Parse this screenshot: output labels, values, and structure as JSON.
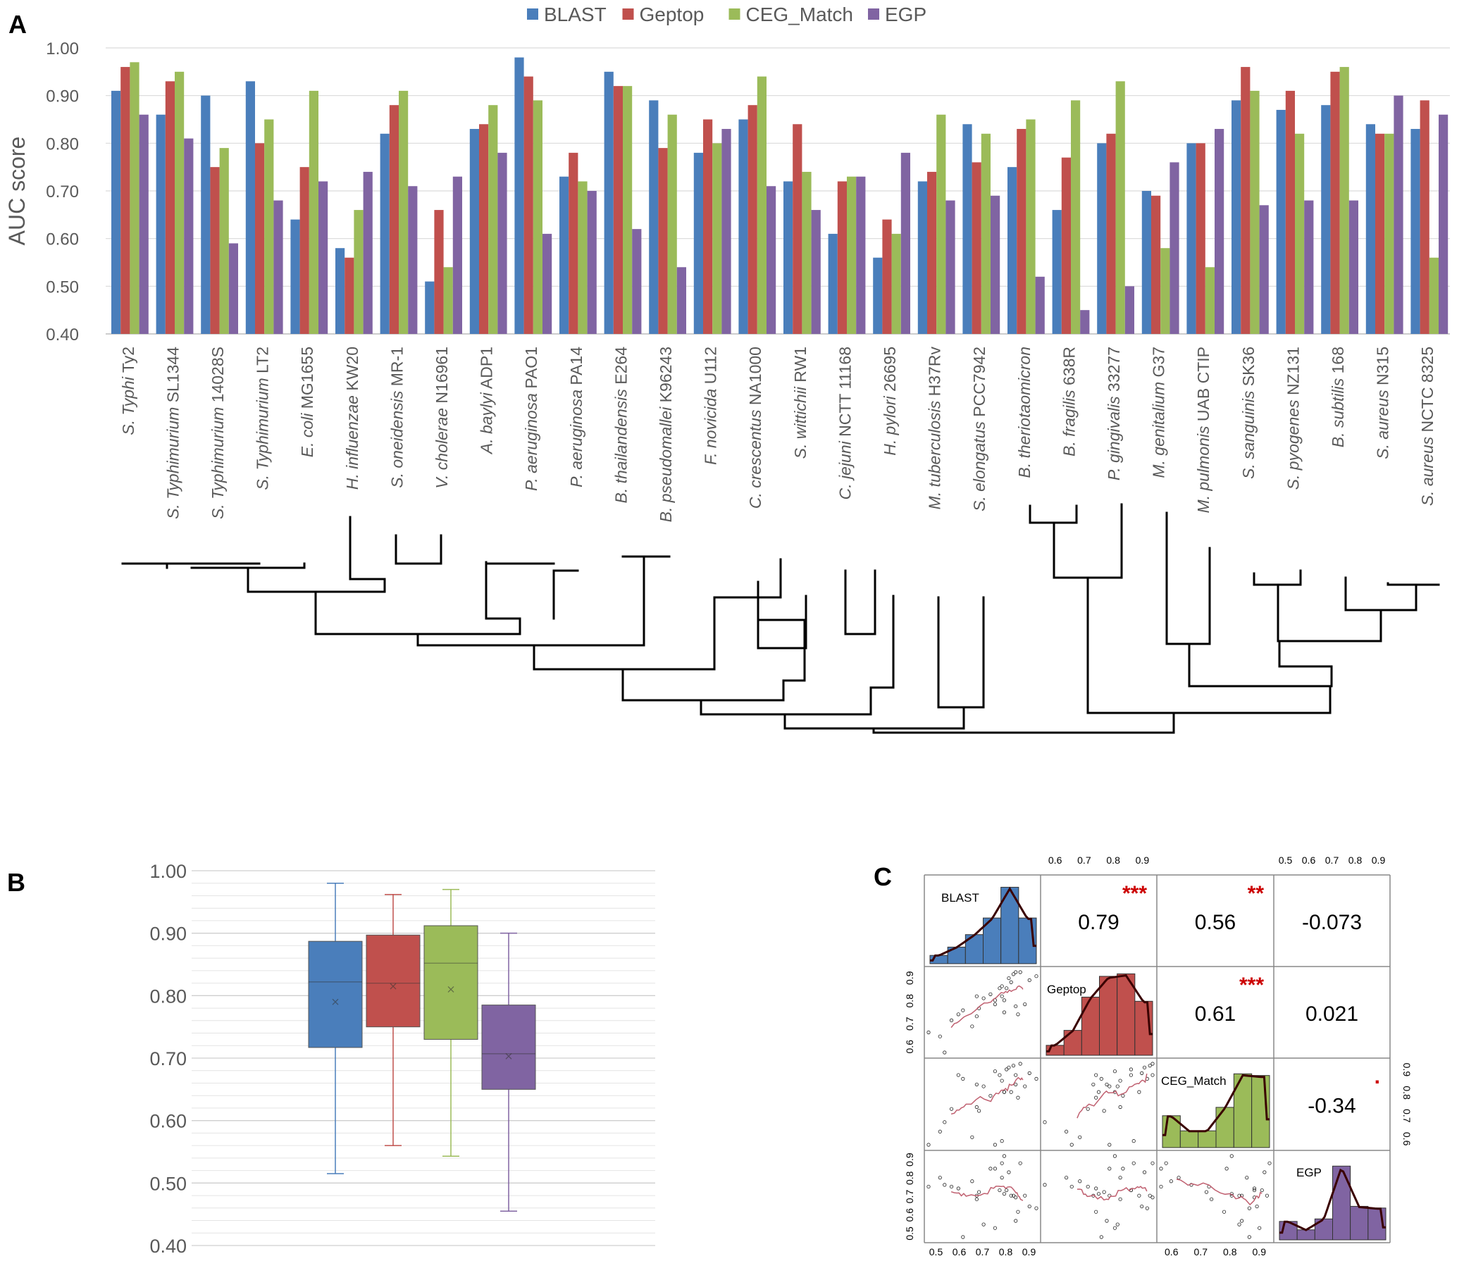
{
  "panels": {
    "a": "A",
    "b": "B",
    "c": "C"
  },
  "colors": {
    "BLAST": "#4a7ebb",
    "Geptop": "#c0504d",
    "CEG_Match": "#9bbb59",
    "EGP": "#8064a2"
  },
  "chart_data": [
    {
      "type": "bar",
      "panel": "A",
      "ylabel": "AUC score",
      "ylim": [
        0.4,
        1.0
      ],
      "yticks": [
        "0.40",
        "0.50",
        "0.60",
        "0.70",
        "0.80",
        "0.90",
        "1.00"
      ],
      "legend": [
        "BLAST",
        "Geptop",
        "CEG_Match",
        "EGP"
      ],
      "categories": [
        {
          "italic": "S. Typhi",
          "rest": " Ty2"
        },
        {
          "italic": "S. Typhimurium",
          "rest": " SL1344"
        },
        {
          "italic": "S. Typhimurium",
          "rest": " 14028S"
        },
        {
          "italic": "S. Typhimurium",
          "rest": " LT2"
        },
        {
          "italic": "E. coli",
          "rest": " MG1655"
        },
        {
          "italic": "H. influenzae",
          "rest": " KW20"
        },
        {
          "italic": "S. oneidensis",
          "rest": " MR-1"
        },
        {
          "italic": "V. cholerae",
          "rest": " N16961"
        },
        {
          "italic": "A. baylyi",
          "rest": " ADP1"
        },
        {
          "italic": "P. aeruginosa",
          "rest": " PAO1"
        },
        {
          "italic": "P. aeruginosa",
          "rest": " PA14"
        },
        {
          "italic": "B. thailandensis",
          "rest": " E264"
        },
        {
          "italic": "B. pseudomallei",
          "rest": " K96243"
        },
        {
          "italic": "F. novicida",
          "rest": " U112"
        },
        {
          "italic": "C. crescentus",
          "rest": " NA1000"
        },
        {
          "italic": "S. wittichii",
          "rest": " RW1"
        },
        {
          "italic": "C. jejuni",
          "rest": " NCTT 11168"
        },
        {
          "italic": "H. pylori",
          "rest": " 26695"
        },
        {
          "italic": "M. tuberculosis",
          "rest": " H37Rv"
        },
        {
          "italic": "S. elongatus",
          "rest": " PCC7942"
        },
        {
          "italic": "B. theriotaomicron",
          "rest": ""
        },
        {
          "italic": "B. fragilis",
          "rest": " 638R"
        },
        {
          "italic": "P. gingivalis",
          "rest": " 33277"
        },
        {
          "italic": "M. genitalium",
          "rest": " G37"
        },
        {
          "italic": "M. pulmonis",
          "rest": " UAB CTIP"
        },
        {
          "italic": "S. sanguinis",
          "rest": " SK36"
        },
        {
          "italic": "S. pyogenes",
          "rest": " NZ131"
        },
        {
          "italic": "B. subtilis",
          "rest": " 168"
        },
        {
          "italic": "S. aureus",
          "rest": " N315"
        },
        {
          "italic": "S. aureus",
          "rest": " NCTC 8325"
        }
      ],
      "series": [
        {
          "name": "BLAST",
          "values": [
            0.91,
            0.86,
            0.9,
            0.93,
            0.64,
            0.58,
            0.82,
            0.51,
            0.83,
            0.98,
            0.73,
            0.95,
            0.89,
            0.78,
            0.85,
            0.72,
            0.61,
            0.56,
            0.72,
            0.84,
            0.75,
            0.66,
            0.8,
            0.7,
            0.8,
            0.89,
            0.87,
            0.88,
            0.84,
            0.83
          ]
        },
        {
          "name": "Geptop",
          "values": [
            0.96,
            0.93,
            0.75,
            0.8,
            0.75,
            0.56,
            0.88,
            0.66,
            0.84,
            0.94,
            0.78,
            0.92,
            0.79,
            0.85,
            0.88,
            0.84,
            0.72,
            0.64,
            0.74,
            0.76,
            0.83,
            0.77,
            0.82,
            0.69,
            0.8,
            0.96,
            0.91,
            0.95,
            0.82,
            0.89
          ]
        },
        {
          "name": "CEG_Match",
          "values": [
            0.97,
            0.95,
            0.79,
            0.85,
            0.91,
            0.66,
            0.91,
            0.54,
            0.88,
            0.89,
            0.72,
            0.92,
            0.86,
            0.8,
            0.94,
            0.74,
            0.73,
            0.61,
            0.86,
            0.82,
            0.85,
            0.89,
            0.93,
            0.58,
            0.54,
            0.91,
            0.82,
            0.96,
            0.82,
            0.56
          ]
        },
        {
          "name": "EGP",
          "values": [
            0.86,
            0.81,
            0.59,
            0.68,
            0.72,
            0.74,
            0.71,
            0.73,
            0.78,
            0.61,
            0.7,
            0.62,
            0.54,
            0.83,
            0.71,
            0.66,
            0.73,
            0.78,
            0.68,
            0.69,
            0.52,
            0.45,
            0.5,
            0.76,
            0.83,
            0.67,
            0.68,
            0.68,
            0.9,
            0.86
          ]
        }
      ]
    },
    {
      "type": "box",
      "panel": "B",
      "ylim": [
        0.4,
        1.0
      ],
      "yticks": [
        "0.40",
        "0.50",
        "0.60",
        "0.70",
        "0.80",
        "0.90",
        "1.00"
      ],
      "series": [
        {
          "name": "BLAST",
          "min": 0.515,
          "q1": 0.717,
          "median": 0.822,
          "q3": 0.887,
          "max": 0.98,
          "mean": 0.79
        },
        {
          "name": "Geptop",
          "min": 0.56,
          "q1": 0.75,
          "median": 0.82,
          "q3": 0.897,
          "max": 0.962,
          "mean": 0.815
        },
        {
          "name": "CEG_Match",
          "min": 0.543,
          "q1": 0.73,
          "median": 0.852,
          "q3": 0.912,
          "max": 0.97,
          "mean": 0.81
        },
        {
          "name": "EGP",
          "min": 0.455,
          "q1": 0.65,
          "median": 0.707,
          "q3": 0.785,
          "max": 0.9,
          "mean": 0.703
        }
      ]
    },
    {
      "type": "scatter-matrix",
      "panel": "C",
      "variables": [
        "BLAST",
        "Geptop",
        "CEG_Match",
        "EGP"
      ],
      "correlations": [
        {
          "row": 0,
          "col": 1,
          "value": "0.79",
          "sig": "***"
        },
        {
          "row": 0,
          "col": 2,
          "value": "0.56",
          "sig": "**"
        },
        {
          "row": 0,
          "col": 3,
          "value": "-0.073",
          "sig": ""
        },
        {
          "row": 1,
          "col": 2,
          "value": "0.61",
          "sig": "***"
        },
        {
          "row": 1,
          "col": 3,
          "value": "0.021",
          "sig": ""
        },
        {
          "row": 2,
          "col": 3,
          "value": "-0.34",
          "sig": "."
        }
      ],
      "top_axis_col1": [
        "0.6",
        "0.7",
        "0.8",
        "0.9"
      ],
      "top_axis_col3": [
        "0.5",
        "0.6",
        "0.7",
        "0.8",
        "0.9"
      ],
      "left_axis_row1": [
        "0.6",
        "0.7",
        "0.8",
        "0.9"
      ],
      "left_axis_row3": [
        "0.5",
        "0.6",
        "0.7",
        "0.8",
        "0.9"
      ],
      "right_axis_row2": [
        "0.6",
        "0.7",
        "0.8",
        "0.9"
      ],
      "bottom_axis_col0": [
        "0.5",
        "0.6",
        "0.7",
        "0.8",
        "0.9"
      ],
      "bottom_axis_col2": [
        "0.6",
        "0.7",
        "0.8",
        "0.9"
      ],
      "histograms": {
        "BLAST": [
          0.1,
          0.2,
          0.35,
          0.55,
          0.92,
          0.55
        ],
        "Geptop": [
          0.12,
          0.3,
          0.7,
          0.95,
          0.98,
          0.65
        ],
        "CEG_Match": [
          0.38,
          0.2,
          0.2,
          0.48,
          0.88,
          0.86
        ],
        "EGP": [
          0.22,
          0.12,
          0.25,
          0.88,
          0.4,
          0.38
        ]
      }
    }
  ]
}
